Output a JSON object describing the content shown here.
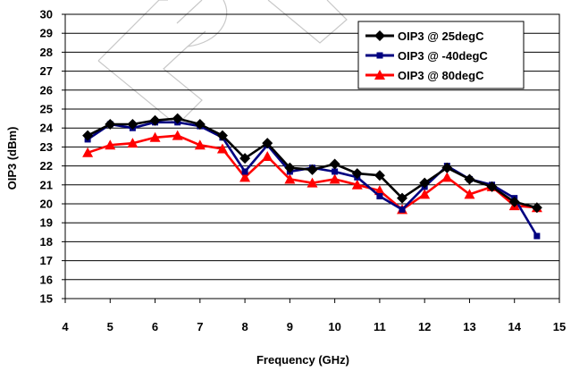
{
  "chart_data": {
    "type": "line",
    "title": "",
    "xlabel": "Frequency (GHz)",
    "ylabel": "OIP3 (dBm)",
    "xlim": [
      4,
      15
    ],
    "ylim": [
      15,
      30
    ],
    "xticks": [
      4,
      5,
      6,
      7,
      8,
      9,
      10,
      11,
      12,
      13,
      14,
      15
    ],
    "yticks": [
      15,
      16,
      17,
      18,
      19,
      20,
      21,
      22,
      23,
      24,
      25,
      26,
      27,
      28,
      29,
      30
    ],
    "grid": "horizontal",
    "legend_position": "top-right",
    "x": [
      4.5,
      5,
      5.5,
      6,
      6.5,
      7,
      7.5,
      8,
      8.5,
      9,
      9.5,
      10,
      10.5,
      11,
      11.5,
      12,
      12.5,
      13,
      13.5,
      14,
      14.5
    ],
    "series": [
      {
        "name": "OIP3 @ 25degC",
        "color": "#000000",
        "marker": "diamond",
        "values": [
          23.6,
          24.2,
          24.2,
          24.4,
          24.5,
          24.2,
          23.6,
          22.4,
          23.2,
          21.9,
          21.8,
          22.1,
          21.6,
          21.5,
          20.3,
          21.1,
          21.9,
          21.3,
          20.9,
          20.1,
          19.8
        ]
      },
      {
        "name": "OIP3 @ -40degC",
        "color": "#000080",
        "marker": "square",
        "values": [
          23.4,
          24.2,
          24.0,
          24.3,
          24.3,
          24.1,
          23.5,
          21.7,
          23.1,
          21.7,
          21.9,
          21.7,
          21.4,
          20.4,
          19.7,
          20.9,
          22.0,
          21.3,
          21.0,
          20.3,
          18.3
        ]
      },
      {
        "name": "OIP3 @ 80degC",
        "color": "#ff0000",
        "marker": "triangle",
        "values": [
          22.7,
          23.1,
          23.2,
          23.5,
          23.6,
          23.1,
          22.9,
          21.4,
          22.5,
          21.3,
          21.1,
          21.3,
          21.0,
          20.7,
          19.7,
          20.5,
          21.4,
          20.5,
          20.9,
          19.9,
          19.8
        ]
      }
    ]
  }
}
